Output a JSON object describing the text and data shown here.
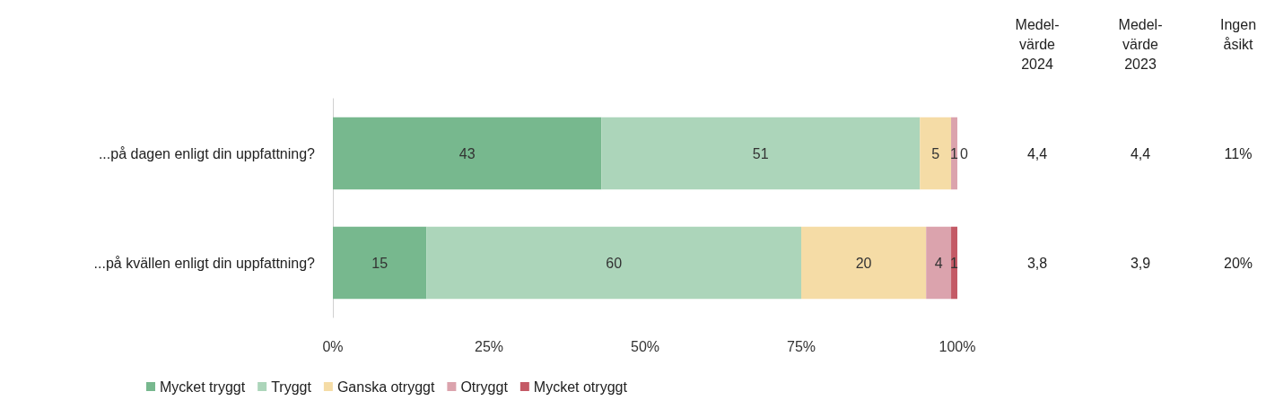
{
  "chart_data": {
    "type": "bar",
    "orientation": "horizontal",
    "stacked": true,
    "data_labels": true,
    "legend": "bottom",
    "grid": false,
    "categories": [
      "...på dagen enligt din uppfattning?",
      "...på kvällen enligt din uppfattning?"
    ],
    "series": [
      {
        "name": "Mycket tryggt",
        "color": "#77b88e",
        "values": [
          43,
          15
        ]
      },
      {
        "name": "Tryggt",
        "color": "#acd5ba",
        "values": [
          51,
          60
        ]
      },
      {
        "name": "Ganska otryggt",
        "color": "#f5dca6",
        "values": [
          5,
          20
        ]
      },
      {
        "name": "Otryggt",
        "color": "#dba3ad",
        "values": [
          1,
          4
        ]
      },
      {
        "name": "Mycket otryggt",
        "color": "#c45a66",
        "values": [
          0,
          1
        ]
      }
    ],
    "xlim": [
      0,
      100
    ],
    "xticks": [
      {
        "value": 0,
        "label": "0%"
      },
      {
        "value": 25,
        "label": "25%"
      },
      {
        "value": 50,
        "label": "50%"
      },
      {
        "value": 75,
        "label": "75%"
      },
      {
        "value": 100,
        "label": "100%"
      }
    ],
    "annotations": [
      "Medel-\nvärde\n2024",
      "Medel-\nvärde\n2023",
      "Ingen\nåsikt",
      "4,4",
      "4,4",
      "11%",
      "3,8",
      "3,9",
      "20%"
    ]
  }
}
